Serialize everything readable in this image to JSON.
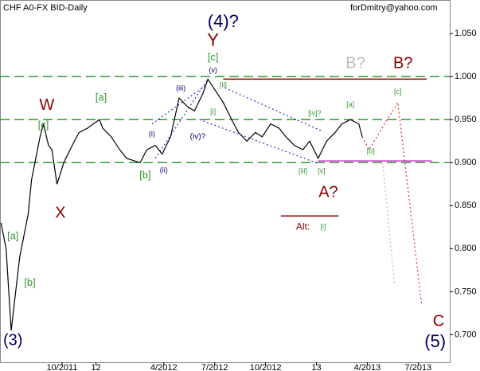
{
  "chart_data": {
    "type": "line",
    "title": "CHF A0-FX BID-Daily",
    "subtitle": "forDmitry@yahoo.com",
    "xlim": [
      -3.66,
      22.86
    ],
    "ylim": [
      0.668,
      1.089
    ],
    "xticks": [
      {
        "value": 0,
        "label": "10/2011"
      },
      {
        "value": 2,
        "label": "12"
      },
      {
        "value": 6,
        "label": "4/2012"
      },
      {
        "value": 9,
        "label": "7/2012"
      },
      {
        "value": 12,
        "label": "10/2012"
      },
      {
        "value": 15,
        "label": "13"
      },
      {
        "value": 18,
        "label": "4/2013"
      },
      {
        "value": 21,
        "label": "7/2013"
      }
    ],
    "yticks": [
      {
        "value": 0.7,
        "label": "0.700"
      },
      {
        "value": 0.75,
        "label": "0.750"
      },
      {
        "value": 0.8,
        "label": "0.800"
      },
      {
        "value": 0.85,
        "label": "0.850"
      },
      {
        "value": 0.9,
        "label": "0.900"
      },
      {
        "value": 0.95,
        "label": "0.950"
      },
      {
        "value": 1.0,
        "label": "1.000"
      },
      {
        "value": 1.05,
        "label": "1.050"
      }
    ],
    "x": [
      -3.6,
      -3.3,
      -3.0,
      -2.5,
      -2.0,
      -1.8,
      -1.3,
      -1.1,
      -0.8,
      -0.6,
      -0.3,
      0.1,
      0.6,
      1.0,
      1.5,
      2.2,
      2.4,
      2.9,
      3.4,
      3.8,
      4.6,
      5.0,
      5.5,
      5.9,
      6.4,
      6.9,
      7.4,
      7.8,
      8.3,
      8.6,
      9.0,
      9.5,
      10.0,
      10.4,
      10.9,
      11.4,
      11.8,
      12.3,
      12.8,
      13.2,
      13.7,
      14.2,
      14.6,
      15.1,
      15.6,
      16.1,
      16.5,
      17.0,
      17.5,
      17.7
    ],
    "series": [
      {
        "color": "#000000",
        "values": [
          0.83,
          0.8,
          0.705,
          0.79,
          0.84,
          0.88,
          0.93,
          0.945,
          0.92,
          0.915,
          0.875,
          0.9,
          0.92,
          0.935,
          0.94,
          0.95,
          0.94,
          0.93,
          0.915,
          0.905,
          0.9,
          0.915,
          0.92,
          0.91,
          0.93,
          0.975,
          0.965,
          0.96,
          0.98,
          0.997,
          0.985,
          0.97,
          0.95,
          0.935,
          0.925,
          0.935,
          0.93,
          0.945,
          0.94,
          0.93,
          0.92,
          0.915,
          0.925,
          0.905,
          0.925,
          0.935,
          0.945,
          0.95,
          0.945,
          0.93
        ]
      }
    ],
    "hlines": [
      {
        "value": 1.0,
        "color": "#339933"
      },
      {
        "value": 0.95,
        "color": "#339933"
      },
      {
        "value": 0.9,
        "color": "#339933"
      }
    ],
    "lines": [
      {
        "color": "#8b0000",
        "dash": false,
        "points": [
          [
            9.5,
            0.997
          ],
          [
            21.5,
            0.997
          ]
        ]
      },
      {
        "color": "#cc33cc",
        "dash": false,
        "points": [
          [
            15.1,
            0.902
          ],
          [
            21.8,
            0.902
          ]
        ]
      },
      {
        "color": "#8b0000",
        "dash": false,
        "points": [
          [
            12.9,
            0.838
          ],
          [
            16.3,
            0.838
          ]
        ]
      },
      {
        "color": "#e03030",
        "dash": true,
        "points": [
          [
            17.7,
            0.93
          ],
          [
            18.1,
            0.915
          ],
          [
            19.8,
            0.97
          ],
          [
            21.2,
            0.735
          ]
        ]
      },
      {
        "color": "#bbbbbb",
        "dash": true,
        "points": [
          [
            18.9,
            0.9
          ],
          [
            19.6,
            0.76
          ]
        ]
      },
      {
        "color": "#3333cc",
        "dash": true,
        "points": [
          [
            5.5,
            0.905
          ],
          [
            8.6,
            0.997
          ]
        ]
      },
      {
        "color": "#3333cc",
        "dash": true,
        "points": [
          [
            5.3,
            0.945
          ],
          [
            8.5,
            0.99
          ]
        ]
      },
      {
        "color": "#3333cc",
        "dash": true,
        "points": [
          [
            9.6,
            0.987
          ],
          [
            15.4,
            0.936
          ]
        ]
      },
      {
        "color": "#3333cc",
        "dash": true,
        "points": [
          [
            8.1,
            0.95
          ],
          [
            15.1,
            0.899
          ]
        ]
      }
    ],
    "annotations": [
      {
        "text": "(4)?",
        "x": 9.5,
        "y": 1.063,
        "color": "#000066"
      },
      {
        "text": "Y",
        "x": 8.9,
        "y": 1.041,
        "color": "#8b0000"
      },
      {
        "text": "[c]",
        "x": 8.9,
        "y": 1.022,
        "color": "#339933"
      },
      {
        "text": "(v)",
        "x": 8.9,
        "y": 1.007,
        "color": "#000066"
      },
      {
        "text": "[ii]",
        "x": 9.5,
        "y": 0.99,
        "color": "#339933"
      },
      {
        "text": "(iii)",
        "x": 7.0,
        "y": 0.986,
        "color": "#000066"
      },
      {
        "text": "[a]",
        "x": 2.3,
        "y": 0.975,
        "color": "#339933"
      },
      {
        "text": "W",
        "x": -0.9,
        "y": 0.966,
        "color": "#8b0000"
      },
      {
        "text": "[c]",
        "x": -1.1,
        "y": 0.943,
        "color": "#339933"
      },
      {
        "text": "[i]",
        "x": 8.9,
        "y": 0.959,
        "color": "#339933"
      },
      {
        "text": "(iv)?",
        "x": 8.0,
        "y": 0.93,
        "color": "#000066"
      },
      {
        "text": "(i)",
        "x": 5.3,
        "y": 0.933,
        "color": "#000066"
      },
      {
        "text": "(ii)",
        "x": 6.0,
        "y": 0.891,
        "color": "#000066"
      },
      {
        "text": "[b]",
        "x": 4.9,
        "y": 0.885,
        "color": "#339933"
      },
      {
        "text": "X",
        "x": -0.1,
        "y": 0.841,
        "color": "#8b0000"
      },
      {
        "text": "[a]",
        "x": -2.9,
        "y": 0.814,
        "color": "#339933"
      },
      {
        "text": "[b]",
        "x": -1.9,
        "y": 0.76,
        "color": "#339933"
      },
      {
        "text": "(3)",
        "x": -2.9,
        "y": 0.693,
        "color": "#000066"
      },
      {
        "text": "[iv]?",
        "x": 14.9,
        "y": 0.957,
        "color": "#339933"
      },
      {
        "text": "[a]",
        "x": 17.0,
        "y": 0.967,
        "color": "#339933"
      },
      {
        "text": "[b]",
        "x": 18.2,
        "y": 0.913,
        "color": "#339933"
      },
      {
        "text": "[iii]",
        "x": 14.2,
        "y": 0.89,
        "color": "#339933"
      },
      {
        "text": "[v]",
        "x": 15.3,
        "y": 0.89,
        "color": "#339933"
      },
      {
        "text": "A?",
        "x": 15.7,
        "y": 0.865,
        "color": "#8b0000"
      },
      {
        "text": "Alt:",
        "x": 14.2,
        "y": 0.825,
        "color": "#8b0000"
      },
      {
        "text": "[i]",
        "x": 15.4,
        "y": 0.825,
        "color": "#339933"
      },
      {
        "text": "B?",
        "x": 17.3,
        "y": 1.015,
        "color": "#bbbbbb"
      },
      {
        "text": "B?",
        "x": 20.1,
        "y": 1.015,
        "color": "#8b0000"
      },
      {
        "text": "[c]",
        "x": 19.8,
        "y": 0.982,
        "color": "#339933"
      },
      {
        "text": "C",
        "x": 22.2,
        "y": 0.715,
        "color": "#8b0000"
      },
      {
        "text": "(5)",
        "x": 22.0,
        "y": 0.691,
        "color": "#000066"
      }
    ]
  }
}
